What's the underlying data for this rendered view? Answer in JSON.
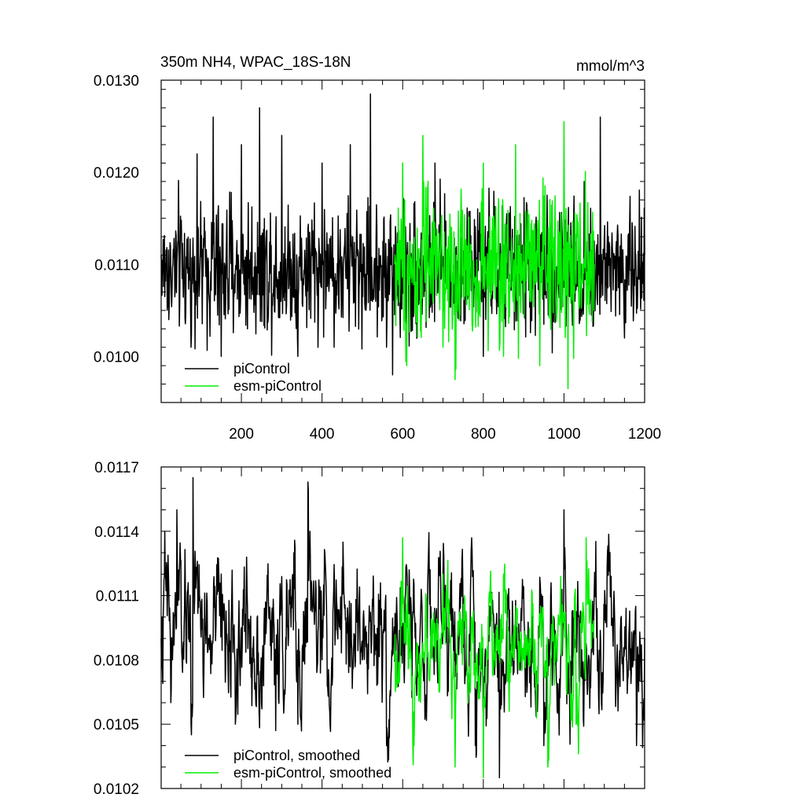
{
  "chart_data": [
    {
      "type": "line",
      "title": "350m NH4, WPAC_18S-18N",
      "units": "mmol/m^3",
      "xlabel": "",
      "ylabel": "",
      "xlim": [
        1,
        1200
      ],
      "ylim": [
        0.0095,
        0.013
      ],
      "x_ticks": [
        200,
        400,
        600,
        800,
        1000,
        1200
      ],
      "x_tick_labels": [
        "200",
        "400",
        "600",
        "800",
        "1000",
        "1200"
      ],
      "y_ticks": [
        0.01,
        0.011,
        0.012,
        0.013
      ],
      "y_tick_labels": [
        "0.0100",
        "0.0110",
        "0.0120",
        "0.0130"
      ],
      "grid": false,
      "legend": "bottom-left",
      "series": [
        {
          "name": "piControl",
          "color": "#000000",
          "x_range": [
            1,
            1200
          ],
          "approx_mean": 0.01095,
          "approx_min": 0.0098,
          "approx_max": 0.01285,
          "anchors": [
            [
              1,
              0.0111
            ],
            [
              20,
              0.0104
            ],
            [
              75,
              0.0101
            ],
            [
              90,
              0.0122
            ],
            [
              130,
              0.0126
            ],
            [
              150,
              0.01
            ],
            [
              200,
              0.0123
            ],
            [
              245,
              0.0127
            ],
            [
              300,
              0.0124
            ],
            [
              340,
              0.01
            ],
            [
              400,
              0.0121
            ],
            [
              470,
              0.0123
            ],
            [
              520,
              0.01285
            ],
            [
              560,
              0.0101
            ],
            [
              575,
              0.0098
            ],
            [
              680,
              0.0121
            ],
            [
              800,
              0.01
            ],
            [
              1050,
              0.0119
            ],
            [
              1090,
              0.0126
            ],
            [
              1150,
              0.0102
            ],
            [
              1200,
              0.0111
            ]
          ]
        },
        {
          "name": "esm-piControl",
          "color": "#00ee00",
          "x_range": [
            580,
            1075
          ],
          "approx_mean": 0.01095,
          "approx_min": 0.00965,
          "approx_max": 0.01255,
          "anchors": [
            [
              580,
              0.011
            ],
            [
              600,
              0.0121
            ],
            [
              610,
              0.0099
            ],
            [
              650,
              0.0124
            ],
            [
              700,
              0.0101
            ],
            [
              730,
              0.00975
            ],
            [
              800,
              0.0121
            ],
            [
              850,
              0.01
            ],
            [
              880,
              0.0123
            ],
            [
              940,
              0.0099
            ],
            [
              1000,
              0.01255
            ],
            [
              1010,
              0.00965
            ],
            [
              1075,
              0.011
            ]
          ]
        }
      ]
    },
    {
      "type": "line",
      "title": "",
      "xlabel": "",
      "ylabel": "",
      "xlim": [
        1,
        1200
      ],
      "ylim": [
        0.0102,
        0.0117
      ],
      "x_ticks": [
        200,
        400,
        600,
        800,
        1000,
        1200
      ],
      "x_tick_labels": [],
      "y_ticks": [
        0.0102,
        0.0105,
        0.0108,
        0.0111,
        0.0114,
        0.0117
      ],
      "y_tick_labels": [
        "0.0102",
        "0.0105",
        "0.0108",
        "0.0111",
        "0.0114",
        "0.0117"
      ],
      "grid": false,
      "legend": "bottom-left",
      "series": [
        {
          "name": "piControl, smoothed",
          "color": "#000000",
          "x_range": [
            1,
            1200
          ],
          "approx_mean": 0.01092,
          "approx_min": 0.01025,
          "approx_max": 0.01165,
          "anchors": [
            [
              1,
              0.0109
            ],
            [
              10,
              0.0114
            ],
            [
              25,
              0.0106
            ],
            [
              40,
              0.0115
            ],
            [
              75,
              0.0105
            ],
            [
              80,
              0.01165
            ],
            [
              150,
              0.0112
            ],
            [
              185,
              0.0105
            ],
            [
              285,
              0.01047
            ],
            [
              330,
              0.0113
            ],
            [
              340,
              0.0105
            ],
            [
              365,
              0.01163
            ],
            [
              400,
              0.0108
            ],
            [
              500,
              0.0108
            ],
            [
              560,
              0.0104
            ],
            [
              590,
              0.0108
            ],
            [
              700,
              0.0112
            ],
            [
              780,
              0.0104
            ],
            [
              840,
              0.01025
            ],
            [
              920,
              0.0109
            ],
            [
              950,
              0.0104
            ],
            [
              1000,
              0.0115
            ],
            [
              1050,
              0.0107
            ],
            [
              1180,
              0.0104
            ],
            [
              1200,
              0.0109
            ]
          ]
        },
        {
          "name": "esm-piControl, smoothed",
          "color": "#00ee00",
          "x_range": [
            580,
            1075
          ],
          "approx_mean": 0.01088,
          "approx_min": 0.01025,
          "approx_max": 0.01137,
          "anchors": [
            [
              580,
              0.0108
            ],
            [
              600,
              0.01137
            ],
            [
              625,
              0.0104
            ],
            [
              700,
              0.0112
            ],
            [
              730,
              0.0103
            ],
            [
              770,
              0.011
            ],
            [
              800,
              0.01025
            ],
            [
              850,
              0.0112
            ],
            [
              950,
              0.0108
            ],
            [
              960,
              0.0103
            ],
            [
              1000,
              0.011
            ],
            [
              1030,
              0.0105
            ],
            [
              1055,
              0.01137
            ],
            [
              1075,
              0.0109
            ]
          ]
        }
      ]
    }
  ]
}
